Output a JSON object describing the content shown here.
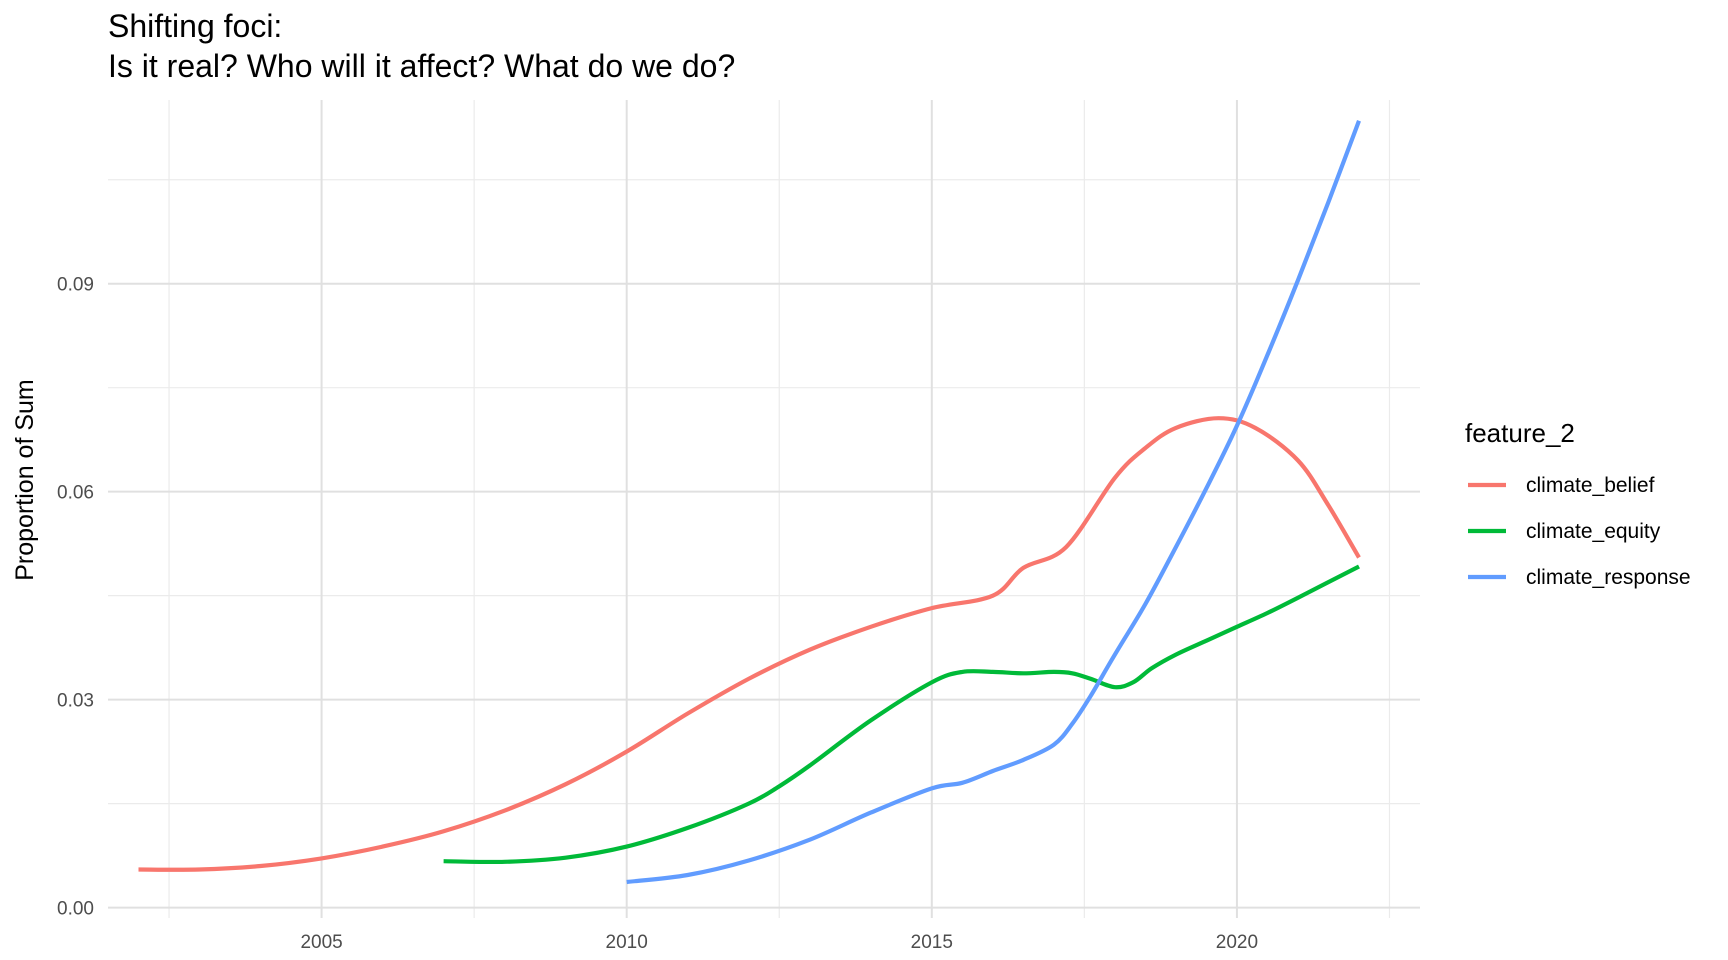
{
  "chart_data": {
    "type": "line",
    "title_line1": "Shifting foci:",
    "title_line2": "Is it real? Who will it affect? What do we do?",
    "xlabel": "",
    "ylabel": "Proportion of Sum",
    "xlim": [
      2001.5,
      2023
    ],
    "ylim": [
      -0.0015,
      0.1165
    ],
    "x_ticks": [
      2005,
      2010,
      2015,
      2020
    ],
    "x_tick_labels": [
      "2005",
      "2010",
      "2015",
      "2020"
    ],
    "y_ticks": [
      0.0,
      0.03,
      0.06,
      0.09
    ],
    "y_tick_labels": [
      "0.00",
      "0.03",
      "0.06",
      "0.09"
    ],
    "grid": true,
    "legend": {
      "title": "feature_2",
      "position": "right"
    },
    "series": [
      {
        "name": "climate_belief",
        "color": "#F8766D",
        "x": [
          2002,
          2003,
          2004,
          2005,
          2006,
          2007,
          2008,
          2009,
          2010,
          2011,
          2012,
          2013,
          2014,
          2015,
          2016,
          2016.5,
          2017.2,
          2018,
          2018.5,
          2019,
          2019.7,
          2020.3,
          2021,
          2021.5,
          2022
        ],
        "y": [
          0.0055,
          0.0055,
          0.006,
          0.0071,
          0.0088,
          0.011,
          0.014,
          0.0178,
          0.0225,
          0.028,
          0.033,
          0.0372,
          0.0405,
          0.0432,
          0.045,
          0.049,
          0.052,
          0.062,
          0.0663,
          0.0692,
          0.0706,
          0.0692,
          0.0645,
          0.058,
          0.0505
        ]
      },
      {
        "name": "climate_equity",
        "color": "#00BA38",
        "x": [
          2007,
          2008,
          2009,
          2010,
          2011,
          2012,
          2012.5,
          2013,
          2014,
          2015,
          2015.5,
          2016,
          2016.5,
          2017,
          2017.3,
          2017.6,
          2018,
          2018.3,
          2018.6,
          2019,
          2019.5,
          2020,
          2020.5,
          2021,
          2022
        ],
        "y": [
          0.0067,
          0.0066,
          0.0072,
          0.0088,
          0.0115,
          0.015,
          0.0175,
          0.0205,
          0.027,
          0.0325,
          0.034,
          0.034,
          0.0338,
          0.034,
          0.0338,
          0.033,
          0.0318,
          0.0325,
          0.0345,
          0.0365,
          0.0385,
          0.0405,
          0.0425,
          0.0447,
          0.0492
        ]
      },
      {
        "name": "climate_response",
        "color": "#619CFF",
        "x": [
          2010,
          2011,
          2012,
          2013,
          2014,
          2015,
          2015.5,
          2016,
          2016.5,
          2017,
          2017.3,
          2017.6,
          2018,
          2018.5,
          2019,
          2019.5,
          2020,
          2020.5,
          2021,
          2021.5,
          2022
        ],
        "y": [
          0.0037,
          0.0047,
          0.0068,
          0.0098,
          0.0137,
          0.0172,
          0.018,
          0.0197,
          0.0213,
          0.0235,
          0.0265,
          0.0305,
          0.0365,
          0.0438,
          0.052,
          0.0605,
          0.0695,
          0.0797,
          0.0905,
          0.1018,
          0.1135
        ]
      }
    ]
  }
}
